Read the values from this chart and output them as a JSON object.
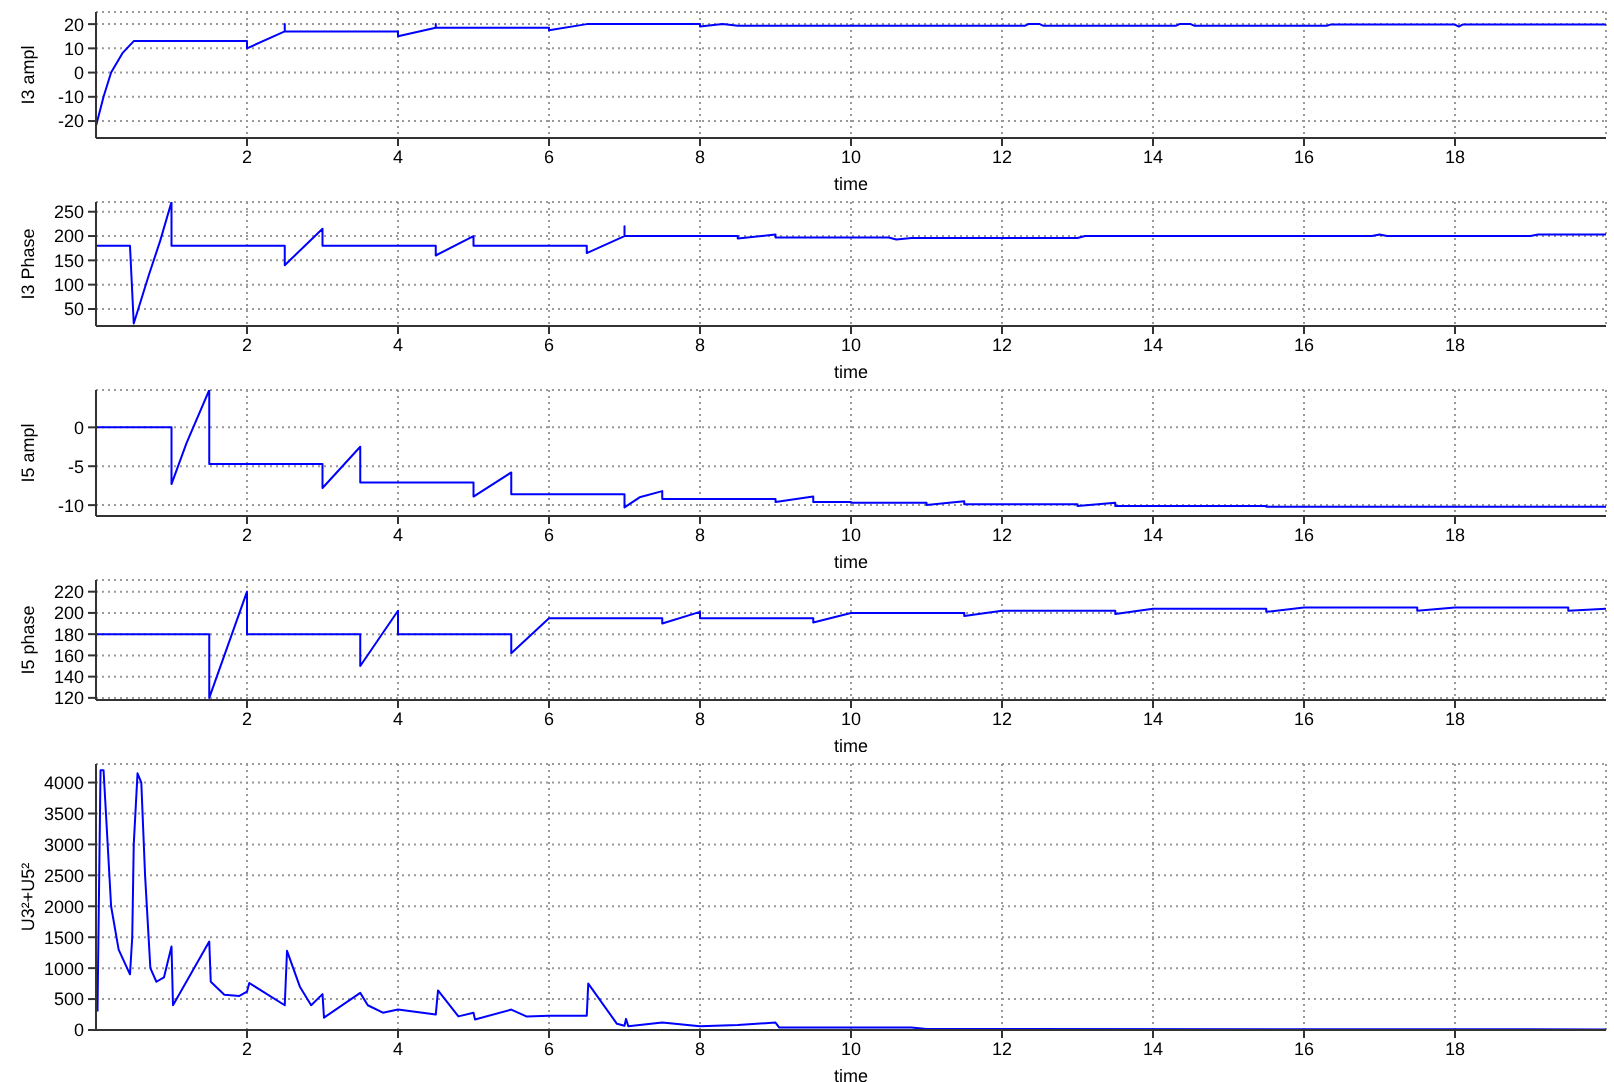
{
  "chart_data": [
    {
      "type": "line",
      "xlabel": "time",
      "ylabel": "I3 ampl",
      "xlim": [
        0,
        20
      ],
      "xticks": [
        2,
        4,
        6,
        8,
        10,
        12,
        14,
        16,
        18
      ],
      "ylim": [
        -27,
        25
      ],
      "yticks": [
        -20,
        -10,
        0,
        10,
        20
      ],
      "grid": true,
      "marker": "none",
      "x": [
        0,
        0.1,
        0.2,
        0.35,
        0.5,
        2.0,
        2.0,
        2.5,
        2.5,
        2.5,
        4.0,
        4.0,
        4.5,
        4.5,
        4.5,
        6.0,
        6.0,
        6.5,
        8.0,
        8.0,
        8.3,
        8.5,
        12.3,
        12.35,
        12.5,
        12.55,
        14.3,
        14.35,
        14.5,
        14.55,
        16.3,
        16.35,
        18.0,
        18.05,
        18.1,
        20
      ],
      "series": [
        {
          "color": "#0000ff",
          "values": [
            -22,
            -10,
            0,
            8,
            13,
            13,
            10,
            17,
            20,
            17,
            17,
            15,
            18.5,
            20,
            18.5,
            18.5,
            17.5,
            20,
            20,
            19,
            20,
            19.3,
            19.3,
            20,
            20,
            19.3,
            19.3,
            20,
            20,
            19.3,
            19.3,
            19.8,
            19.8,
            19,
            19.8,
            19.8
          ]
        }
      ]
    },
    {
      "type": "line",
      "xlabel": "time",
      "ylabel": "I3 Phase",
      "xlim": [
        0,
        20
      ],
      "xticks": [
        2,
        4,
        6,
        8,
        10,
        12,
        14,
        16,
        18
      ],
      "ylim": [
        15,
        270
      ],
      "yticks": [
        50,
        100,
        150,
        200,
        250
      ],
      "grid": true,
      "marker": "none",
      "x": [
        0,
        0.45,
        0.5,
        0.7,
        0.85,
        1.0,
        1.0,
        2.5,
        2.5,
        3.0,
        3.0,
        4.5,
        4.5,
        5.0,
        5.0,
        6.5,
        6.5,
        7.0,
        7.0,
        7.0,
        8.5,
        8.5,
        9.0,
        9.0,
        10.5,
        10.6,
        10.8,
        13.0,
        13.1,
        16.9,
        17.0,
        17.1,
        19.0,
        19.1,
        20
      ],
      "series": [
        {
          "color": "#0000ff",
          "values": [
            180,
            180,
            20,
            120,
            190,
            270,
            180,
            180,
            140,
            215,
            180,
            180,
            160,
            200,
            180,
            180,
            165,
            200,
            220,
            200,
            200,
            195,
            203,
            197,
            197,
            193,
            196,
            196,
            200,
            200,
            203,
            200,
            200,
            203,
            203
          ]
        }
      ]
    },
    {
      "type": "line",
      "xlabel": "time",
      "ylabel": "I5 ampl",
      "xlim": [
        0,
        20
      ],
      "xticks": [
        2,
        4,
        6,
        8,
        10,
        12,
        14,
        16,
        18
      ],
      "ylim": [
        -11.4,
        4.8
      ],
      "yticks": [
        -10,
        -5,
        0
      ],
      "grid": true,
      "marker": "none",
      "x": [
        0,
        1.0,
        1.0,
        1.2,
        1.5,
        1.5,
        3.0,
        3.0,
        3.5,
        3.5,
        5.0,
        5.0,
        5.5,
        5.5,
        7.0,
        7.0,
        7.2,
        7.5,
        7.5,
        9.0,
        9.0,
        9.5,
        9.5,
        10.0,
        10.0,
        11.0,
        11.0,
        11.5,
        11.5,
        13.0,
        13.0,
        13.5,
        13.5,
        15.5,
        15.5,
        20
      ],
      "series": [
        {
          "color": "#0000ff",
          "values": [
            0,
            0,
            -7.3,
            -2,
            4.8,
            -4.7,
            -4.7,
            -7.8,
            -2.5,
            -7.1,
            -7.1,
            -8.9,
            -5.8,
            -8.6,
            -8.6,
            -10.3,
            -9,
            -8.2,
            -9.2,
            -9.2,
            -9.6,
            -8.9,
            -9.6,
            -9.6,
            -9.7,
            -9.7,
            -10,
            -9.5,
            -9.9,
            -9.9,
            -10.1,
            -9.7,
            -10.1,
            -10.1,
            -10.2,
            -10.2
          ]
        }
      ]
    },
    {
      "type": "line",
      "xlabel": "time",
      "ylabel": "I5 phase",
      "xlim": [
        0,
        20
      ],
      "xticks": [
        2,
        4,
        6,
        8,
        10,
        12,
        14,
        16,
        18
      ],
      "ylim": [
        118,
        231
      ],
      "yticks": [
        120,
        140,
        160,
        180,
        200,
        220
      ],
      "grid": true,
      "marker": "none",
      "x": [
        0,
        1.5,
        1.5,
        2.0,
        2.0,
        3.5,
        3.5,
        4.0,
        4.0,
        5.5,
        5.5,
        6.0,
        7.5,
        7.5,
        8.0,
        8.0,
        9.5,
        9.5,
        10.0,
        11.5,
        11.5,
        12.0,
        13.5,
        13.5,
        14.0,
        15.5,
        15.5,
        16.0,
        17.5,
        17.5,
        18.0,
        19.5,
        19.5,
        20
      ],
      "series": [
        {
          "color": "#0000ff",
          "values": [
            180,
            180,
            120,
            220,
            180,
            180,
            150,
            202,
            180,
            180,
            162,
            195,
            195,
            190,
            201,
            195,
            195,
            191,
            200,
            200,
            197,
            202,
            202,
            199,
            204,
            204,
            201,
            205,
            205,
            202,
            205,
            205,
            202,
            204
          ]
        }
      ]
    },
    {
      "type": "line",
      "xlabel": "time",
      "ylabel": "U3²+U5²",
      "xlim": [
        0,
        20
      ],
      "xticks": [
        2,
        4,
        6,
        8,
        10,
        12,
        14,
        16,
        18
      ],
      "ylim": [
        0,
        4300
      ],
      "yticks": [
        0,
        500,
        1000,
        1500,
        2000,
        2500,
        3000,
        3500,
        4000
      ],
      "grid": true,
      "marker": "none",
      "x": [
        0.02,
        0.06,
        0.1,
        0.2,
        0.3,
        0.45,
        0.48,
        0.5,
        0.55,
        0.6,
        0.65,
        0.72,
        0.8,
        0.9,
        1.0,
        1.02,
        1.5,
        1.52,
        1.7,
        1.9,
        2.0,
        2.03,
        2.5,
        2.53,
        2.7,
        2.85,
        3.0,
        3.02,
        3.5,
        3.6,
        3.8,
        4.0,
        4.5,
        4.53,
        4.8,
        5.0,
        5.02,
        5.5,
        5.7,
        6.0,
        6.5,
        6.52,
        6.9,
        7.0,
        7.02,
        7.05,
        7.5,
        8.0,
        8.5,
        9.0,
        9.05,
        10.8,
        11.0,
        20
      ],
      "series": [
        {
          "color": "#0000ff",
          "values": [
            300,
            4200,
            4200,
            2000,
            1300,
            900,
            1500,
            3000,
            4150,
            4000,
            2500,
            1000,
            780,
            850,
            1350,
            400,
            1430,
            780,
            570,
            550,
            620,
            760,
            400,
            1280,
            700,
            400,
            580,
            200,
            600,
            400,
            280,
            330,
            250,
            640,
            220,
            280,
            170,
            330,
            220,
            230,
            230,
            750,
            100,
            70,
            180,
            60,
            120,
            60,
            80,
            120,
            40,
            40,
            15,
            10
          ]
        }
      ]
    }
  ]
}
